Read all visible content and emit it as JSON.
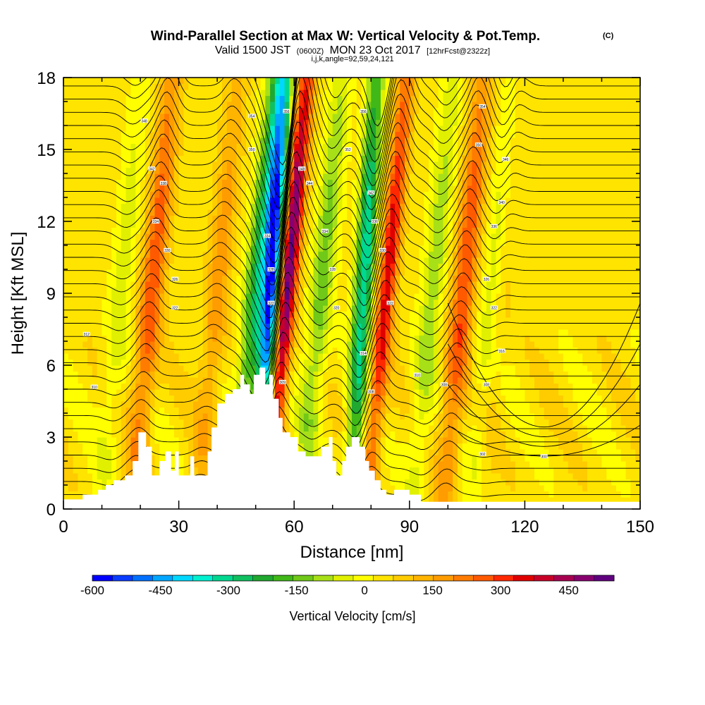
{
  "chart_data": {
    "type": "heatmap",
    "title": "Wind-Parallel Section at Max W: Vertical Velocity & Pot.Temp.",
    "title_mark": "(C)",
    "subtitle": {
      "valid_prefix": "Valid 1500 JST",
      "utc": "(0600Z)",
      "date": "MON 23 Oct 2017",
      "forecast": "[12hrFcst@2322z]"
    },
    "info_line": "i,j,k,angle=92,59,24,121",
    "xlabel": "Distance [nm]",
    "ylabel": "Height [Kft MSL]",
    "xlim": [
      0,
      150
    ],
    "ylim": [
      0,
      18
    ],
    "x_ticks": [
      "0",
      "30",
      "60",
      "90",
      "120",
      "150"
    ],
    "y_ticks": [
      "0",
      "3",
      "6",
      "9",
      "12",
      "15",
      "18"
    ],
    "colorbar": {
      "label": "Vertical Velocity [cm/s]",
      "tick_labels": [
        "-600",
        "-450",
        "-300",
        "-150",
        "0",
        "150",
        "300",
        "450"
      ],
      "range": [
        -600,
        550
      ],
      "colors": [
        "#0000ff",
        "#0a3cff",
        "#0070ff",
        "#00a6ff",
        "#00d8ff",
        "#00f0d0",
        "#00d890",
        "#10c060",
        "#20a830",
        "#40b818",
        "#70c818",
        "#a8e018",
        "#e0f000",
        "#ffff00",
        "#ffe400",
        "#ffcc00",
        "#ffb400",
        "#ff9c00",
        "#ff7c00",
        "#ff5a00",
        "#ff2800",
        "#e00000",
        "#c80028",
        "#a80050",
        "#880070",
        "#60007f"
      ]
    },
    "updrafts": [
      {
        "x": 23,
        "strength": 240
      },
      {
        "x": 40,
        "strength": 140
      },
      {
        "x": 58,
        "strength": 500
      },
      {
        "x": 84,
        "strength": 330
      },
      {
        "x": 104,
        "strength": 250
      },
      {
        "x": 113,
        "strength": 120
      }
    ],
    "downdrafts": [
      {
        "x": 15,
        "strength": -90
      },
      {
        "x": 50,
        "strength": -280
      },
      {
        "x": 54,
        "strength": -600
      },
      {
        "x": 67,
        "strength": -180
      },
      {
        "x": 78,
        "strength": -380
      },
      {
        "x": 96,
        "strength": -140
      },
      {
        "x": 112,
        "strength": -170
      }
    ],
    "terrain_kft": [
      [
        0,
        0.4
      ],
      [
        5,
        0.4
      ],
      [
        5,
        0.6
      ],
      [
        9,
        0.6
      ],
      [
        9,
        0.8
      ],
      [
        11,
        0.8
      ],
      [
        11,
        1.0
      ],
      [
        13,
        1.0
      ],
      [
        13,
        1.2
      ],
      [
        16,
        1.2
      ],
      [
        16,
        1.4
      ],
      [
        18,
        1.4
      ],
      [
        18,
        2.0
      ],
      [
        19.5,
        2.0
      ],
      [
        19.5,
        3.2
      ],
      [
        21.5,
        3.2
      ],
      [
        21.5,
        2.6
      ],
      [
        23,
        2.6
      ],
      [
        23,
        1.4
      ],
      [
        25,
        1.4
      ],
      [
        25,
        2.0
      ],
      [
        26.5,
        2.0
      ],
      [
        26.5,
        2.4
      ],
      [
        28,
        2.4
      ],
      [
        28,
        1.6
      ],
      [
        29,
        1.6
      ],
      [
        29,
        2.4
      ],
      [
        30,
        2.4
      ],
      [
        30,
        1.4
      ],
      [
        33,
        1.4
      ],
      [
        33,
        2.2
      ],
      [
        34,
        2.2
      ],
      [
        34,
        1.4
      ],
      [
        37.5,
        1.4
      ],
      [
        37.5,
        2.4
      ],
      [
        38.5,
        2.4
      ],
      [
        38.5,
        3.4
      ],
      [
        40,
        3.4
      ],
      [
        40,
        4.4
      ],
      [
        42,
        4.4
      ],
      [
        42,
        4.8
      ],
      [
        44,
        4.8
      ],
      [
        44,
        5.0
      ],
      [
        46,
        5.0
      ],
      [
        46,
        5.6
      ],
      [
        47,
        5.6
      ],
      [
        47,
        5.2
      ],
      [
        48.5,
        5.2
      ],
      [
        48.5,
        4.8
      ],
      [
        49.5,
        4.8
      ],
      [
        49.5,
        5.6
      ],
      [
        51,
        5.6
      ],
      [
        51,
        5.9
      ],
      [
        52.5,
        5.9
      ],
      [
        52.5,
        5.2
      ],
      [
        53.5,
        5.2
      ],
      [
        53.5,
        5.6
      ],
      [
        54.5,
        5.6
      ],
      [
        54.5,
        4.6
      ],
      [
        56,
        4.6
      ],
      [
        56,
        3.8
      ],
      [
        57,
        3.8
      ],
      [
        57,
        3.2
      ],
      [
        59,
        3.2
      ],
      [
        59,
        3.0
      ],
      [
        61,
        3.0
      ],
      [
        61,
        2.4
      ],
      [
        63,
        2.4
      ],
      [
        63,
        2.2
      ],
      [
        67,
        2.2
      ],
      [
        67,
        2.6
      ],
      [
        69,
        2.6
      ],
      [
        69,
        3.0
      ],
      [
        70,
        3.0
      ],
      [
        70,
        2.0
      ],
      [
        71,
        2.0
      ],
      [
        71,
        1.4
      ],
      [
        72.5,
        1.4
      ],
      [
        72.5,
        2.0
      ],
      [
        73.5,
        2.0
      ],
      [
        73.5,
        2.6
      ],
      [
        75,
        2.6
      ],
      [
        75,
        3.0
      ],
      [
        77,
        3.0
      ],
      [
        77,
        2.6
      ],
      [
        78.5,
        2.6
      ],
      [
        78.5,
        2.0
      ],
      [
        79.5,
        2.0
      ],
      [
        79.5,
        1.6
      ],
      [
        81,
        1.6
      ],
      [
        81,
        1.2
      ],
      [
        82.5,
        1.2
      ],
      [
        82.5,
        0.8
      ],
      [
        84,
        0.8
      ],
      [
        84,
        0.6
      ],
      [
        86,
        0.6
      ],
      [
        86,
        0.8
      ],
      [
        90,
        0.8
      ],
      [
        90,
        0.6
      ],
      [
        93,
        0.6
      ],
      [
        93,
        0.3
      ],
      [
        150,
        0.3
      ]
    ],
    "theta_labels": [
      {
        "x": 6,
        "y": 7.3,
        "t": "312"
      },
      {
        "x": 8,
        "y": 5.1,
        "t": "310"
      },
      {
        "x": 21,
        "y": 16.2,
        "t": "348"
      },
      {
        "x": 23,
        "y": 14.2,
        "t": "342"
      },
      {
        "x": 26,
        "y": 13.6,
        "t": "338"
      },
      {
        "x": 24,
        "y": 12.0,
        "t": "334"
      },
      {
        "x": 27,
        "y": 10.8,
        "t": "330"
      },
      {
        "x": 29,
        "y": 9.6,
        "t": "326"
      },
      {
        "x": 29,
        "y": 8.4,
        "t": "322"
      },
      {
        "x": 49,
        "y": 16.4,
        "t": "354"
      },
      {
        "x": 49,
        "y": 15.0,
        "t": "350"
      },
      {
        "x": 53,
        "y": 11.4,
        "t": "334"
      },
      {
        "x": 54,
        "y": 10.0,
        "t": "328"
      },
      {
        "x": 54,
        "y": 8.6,
        "t": "322"
      },
      {
        "x": 57,
        "y": 5.3,
        "t": "309"
      },
      {
        "x": 58,
        "y": 16.6,
        "t": "356"
      },
      {
        "x": 62,
        "y": 14.2,
        "t": "348"
      },
      {
        "x": 64,
        "y": 13.6,
        "t": "344"
      },
      {
        "x": 68,
        "y": 11.6,
        "t": "334"
      },
      {
        "x": 70,
        "y": 10.0,
        "t": "328"
      },
      {
        "x": 71,
        "y": 8.4,
        "t": "320"
      },
      {
        "x": 74,
        "y": 15.0,
        "t": "352"
      },
      {
        "x": 78,
        "y": 16.6,
        "t": "356"
      },
      {
        "x": 80,
        "y": 13.2,
        "t": "342"
      },
      {
        "x": 81,
        "y": 12.0,
        "t": "336"
      },
      {
        "x": 83,
        "y": 10.8,
        "t": "330"
      },
      {
        "x": 85,
        "y": 8.6,
        "t": "322"
      },
      {
        "x": 78,
        "y": 6.5,
        "t": "314"
      },
      {
        "x": 80,
        "y": 4.9,
        "t": "308"
      },
      {
        "x": 92,
        "y": 5.6,
        "t": "310"
      },
      {
        "x": 99,
        "y": 5.2,
        "t": "308"
      },
      {
        "x": 109,
        "y": 16.8,
        "t": "354"
      },
      {
        "x": 108,
        "y": 15.2,
        "t": "350"
      },
      {
        "x": 115,
        "y": 14.6,
        "t": "346"
      },
      {
        "x": 114,
        "y": 12.8,
        "t": "340"
      },
      {
        "x": 112,
        "y": 11.8,
        "t": "336"
      },
      {
        "x": 110,
        "y": 9.6,
        "t": "326"
      },
      {
        "x": 112,
        "y": 8.4,
        "t": "322"
      },
      {
        "x": 114,
        "y": 6.6,
        "t": "316"
      },
      {
        "x": 110,
        "y": 5.2,
        "t": "308"
      },
      {
        "x": 109,
        "y": 2.3,
        "t": "302"
      },
      {
        "x": 125,
        "y": 2.2,
        "t": "300"
      }
    ]
  }
}
